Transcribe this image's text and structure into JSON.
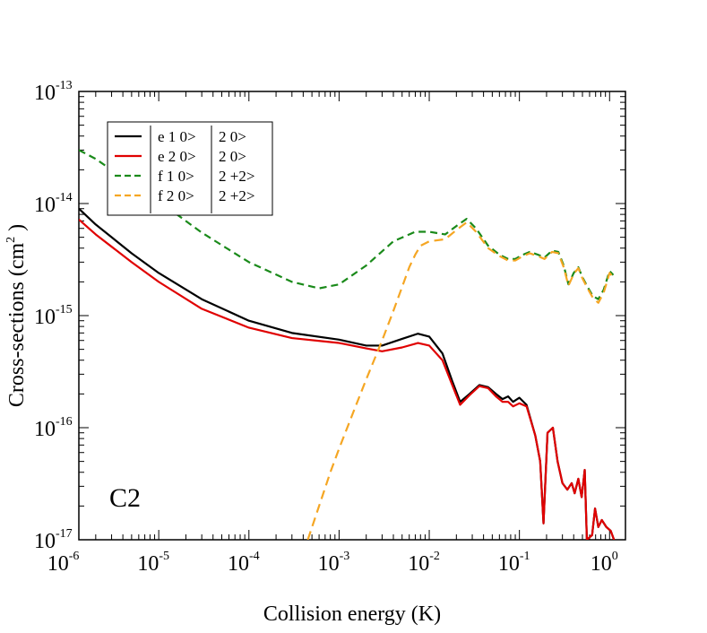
{
  "chart_data": {
    "type": "line",
    "title": "",
    "xlabel": "Collision energy (K)",
    "ylabel_main": "Cross-sections (cm",
    "ylabel_sup": "2",
    "ylabel_end": " )",
    "annotation": "C2",
    "x_scale": "log",
    "y_scale": "log",
    "xlim": [
      1.3e-06,
      1.5
    ],
    "ylim": [
      1e-17,
      1e-13
    ],
    "x_ticks": [
      {
        "value": 1e-06,
        "base": "10",
        "exp": "-6"
      },
      {
        "value": 1e-05,
        "base": "10",
        "exp": "-5"
      },
      {
        "value": 0.0001,
        "base": "10",
        "exp": "-4"
      },
      {
        "value": 0.001,
        "base": "10",
        "exp": "-3"
      },
      {
        "value": 0.01,
        "base": "10",
        "exp": "-2"
      },
      {
        "value": 0.1,
        "base": "10",
        "exp": "-1"
      },
      {
        "value": 1,
        "base": "10",
        "exp": "0"
      }
    ],
    "y_ticks": [
      {
        "value": 1e-17,
        "base": "10",
        "exp": "-17"
      },
      {
        "value": 1e-16,
        "base": "10",
        "exp": "-16"
      },
      {
        "value": 1e-15,
        "base": "10",
        "exp": "-15"
      },
      {
        "value": 1e-14,
        "base": "10",
        "exp": "-14"
      },
      {
        "value": 1e-13,
        "base": "10",
        "exp": "-13"
      }
    ],
    "legend_position": "top-left",
    "series": [
      {
        "name": "e 1  0>| 2  0>",
        "color": "#000000",
        "dash": "solid",
        "points": [
          [
            1.3e-06,
            9e-15
          ],
          [
            2e-06,
            6.5e-15
          ],
          [
            5e-06,
            3.6e-15
          ],
          [
            1e-05,
            2.4e-15
          ],
          [
            3e-05,
            1.4e-15
          ],
          [
            0.0001,
            9e-16
          ],
          [
            0.0003,
            7e-16
          ],
          [
            0.001,
            6.1e-16
          ],
          [
            0.002,
            5.4e-16
          ],
          [
            0.003,
            5.4e-16
          ],
          [
            0.005,
            6.2e-16
          ],
          [
            0.0075,
            6.9e-16
          ],
          [
            0.01,
            6.5e-16
          ],
          [
            0.014,
            4.6e-16
          ],
          [
            0.018,
            2.6e-16
          ],
          [
            0.022,
            1.7e-16
          ],
          [
            0.028,
            2e-16
          ],
          [
            0.036,
            2.4e-16
          ],
          [
            0.045,
            2.3e-16
          ],
          [
            0.055,
            2e-16
          ],
          [
            0.065,
            1.8e-16
          ],
          [
            0.075,
            1.9e-16
          ],
          [
            0.085,
            1.7e-16
          ],
          [
            0.1,
            1.85e-16
          ],
          [
            0.12,
            1.6e-16
          ],
          [
            0.15,
            8.5e-17
          ],
          [
            0.17,
            5e-17
          ],
          [
            0.185,
            1.4e-17
          ],
          [
            0.205,
            9e-17
          ],
          [
            0.235,
            1e-16
          ],
          [
            0.265,
            5e-17
          ],
          [
            0.3,
            3.2e-17
          ],
          [
            0.34,
            2.8e-17
          ],
          [
            0.38,
            3.2e-17
          ],
          [
            0.41,
            2.6e-17
          ],
          [
            0.45,
            3.5e-17
          ],
          [
            0.49,
            2.4e-17
          ],
          [
            0.53,
            4.2e-17
          ],
          [
            0.56,
            1e-17
          ],
          [
            0.64,
            1.1e-17
          ],
          [
            0.69,
            1.9e-17
          ],
          [
            0.75,
            1.3e-17
          ],
          [
            0.82,
            1.5e-17
          ],
          [
            0.92,
            1.3e-17
          ],
          [
            1.03,
            1.2e-17
          ],
          [
            1.12,
            1e-17
          ]
        ]
      },
      {
        "name": "e 2  0>| 2  0>",
        "color": "#e00000",
        "dash": "solid",
        "points": [
          [
            1.3e-06,
            7.2e-15
          ],
          [
            2e-06,
            5.3e-15
          ],
          [
            5e-06,
            3e-15
          ],
          [
            1e-05,
            2e-15
          ],
          [
            3e-05,
            1.15e-15
          ],
          [
            0.0001,
            7.8e-16
          ],
          [
            0.0003,
            6.3e-16
          ],
          [
            0.001,
            5.7e-16
          ],
          [
            0.002,
            5.1e-16
          ],
          [
            0.003,
            4.8e-16
          ],
          [
            0.005,
            5.2e-16
          ],
          [
            0.0075,
            5.7e-16
          ],
          [
            0.01,
            5.4e-16
          ],
          [
            0.014,
            4e-16
          ],
          [
            0.018,
            2.4e-16
          ],
          [
            0.022,
            1.6e-16
          ],
          [
            0.028,
            1.95e-16
          ],
          [
            0.036,
            2.35e-16
          ],
          [
            0.045,
            2.25e-16
          ],
          [
            0.055,
            1.9e-16
          ],
          [
            0.065,
            1.7e-16
          ],
          [
            0.075,
            1.7e-16
          ],
          [
            0.085,
            1.55e-16
          ],
          [
            0.1,
            1.65e-16
          ],
          [
            0.12,
            1.55e-16
          ],
          [
            0.15,
            8.5e-17
          ],
          [
            0.17,
            5e-17
          ],
          [
            0.185,
            1.4e-17
          ],
          [
            0.205,
            9e-17
          ],
          [
            0.235,
            1e-16
          ],
          [
            0.265,
            5e-17
          ],
          [
            0.3,
            3.2e-17
          ],
          [
            0.34,
            2.8e-17
          ],
          [
            0.38,
            3.2e-17
          ],
          [
            0.41,
            2.6e-17
          ],
          [
            0.45,
            3.5e-17
          ],
          [
            0.49,
            2.4e-17
          ],
          [
            0.53,
            4.2e-17
          ],
          [
            0.56,
            1e-17
          ],
          [
            0.64,
            1.1e-17
          ],
          [
            0.69,
            1.9e-17
          ],
          [
            0.75,
            1.3e-17
          ],
          [
            0.82,
            1.5e-17
          ],
          [
            0.92,
            1.3e-17
          ],
          [
            1.03,
            1.2e-17
          ],
          [
            1.12,
            1e-17
          ]
        ]
      },
      {
        "name": "f 1  0>| 2 +2>",
        "color": "#1a8a1a",
        "dash": "8,5",
        "points": [
          [
            1.3e-06,
            3e-14
          ],
          [
            2e-06,
            2.5e-14
          ],
          [
            5e-06,
            1.5e-14
          ],
          [
            1e-05,
            1.05e-14
          ],
          [
            3e-05,
            5.5e-15
          ],
          [
            0.0001,
            3e-15
          ],
          [
            0.0003,
            2e-15
          ],
          [
            0.0006,
            1.75e-15
          ],
          [
            0.001,
            1.9e-15
          ],
          [
            0.002,
            2.8e-15
          ],
          [
            0.004,
            4.6e-15
          ],
          [
            0.007,
            5.6e-15
          ],
          [
            0.01,
            5.6e-15
          ],
          [
            0.015,
            5.3e-15
          ],
          [
            0.02,
            6.3e-15
          ],
          [
            0.026,
            7.3e-15
          ],
          [
            0.033,
            6e-15
          ],
          [
            0.045,
            4.2e-15
          ],
          [
            0.06,
            3.5e-15
          ],
          [
            0.075,
            3.2e-15
          ],
          [
            0.09,
            3.2e-15
          ],
          [
            0.11,
            3.5e-15
          ],
          [
            0.13,
            3.7e-15
          ],
          [
            0.16,
            3.5e-15
          ],
          [
            0.19,
            3.3e-15
          ],
          [
            0.23,
            3.8e-15
          ],
          [
            0.27,
            3.7e-15
          ],
          [
            0.31,
            2.8e-15
          ],
          [
            0.35,
            1.9e-15
          ],
          [
            0.4,
            2.4e-15
          ],
          [
            0.45,
            2.7e-15
          ],
          [
            0.5,
            2.2e-15
          ],
          [
            0.57,
            1.8e-15
          ],
          [
            0.65,
            1.5e-15
          ],
          [
            0.75,
            1.4e-15
          ],
          [
            0.86,
            1.7e-15
          ],
          [
            1,
            2.5e-15
          ],
          [
            1.1,
            2.3e-15
          ]
        ]
      },
      {
        "name": "f 2  0>| 2 +2>",
        "color": "#f5a623",
        "dash": "10,6",
        "points": [
          [
            0.00045,
            1e-17
          ],
          [
            0.0006,
            2e-17
          ],
          [
            0.0008,
            4e-17
          ],
          [
            0.001,
            6.5e-17
          ],
          [
            0.0015,
            1.5e-16
          ],
          [
            0.002,
            2.7e-16
          ],
          [
            0.003,
            6e-16
          ],
          [
            0.004,
            1.1e-15
          ],
          [
            0.005,
            1.8e-15
          ],
          [
            0.006,
            2.7e-15
          ],
          [
            0.007,
            3.5e-15
          ],
          [
            0.008,
            4.2e-15
          ],
          [
            0.01,
            4.6e-15
          ],
          [
            0.015,
            4.8e-15
          ],
          [
            0.02,
            5.8e-15
          ],
          [
            0.026,
            6.8e-15
          ],
          [
            0.033,
            5.6e-15
          ],
          [
            0.045,
            4e-15
          ],
          [
            0.06,
            3.4e-15
          ],
          [
            0.075,
            3.1e-15
          ],
          [
            0.09,
            3.1e-15
          ],
          [
            0.11,
            3.4e-15
          ],
          [
            0.13,
            3.6e-15
          ],
          [
            0.16,
            3.4e-15
          ],
          [
            0.19,
            3.2e-15
          ],
          [
            0.23,
            3.7e-15
          ],
          [
            0.27,
            3.6e-15
          ],
          [
            0.31,
            2.7e-15
          ],
          [
            0.35,
            1.85e-15
          ],
          [
            0.4,
            2.35e-15
          ],
          [
            0.45,
            2.65e-15
          ],
          [
            0.5,
            2.15e-15
          ],
          [
            0.57,
            1.75e-15
          ],
          [
            0.65,
            1.45e-15
          ],
          [
            0.75,
            1.3e-15
          ],
          [
            0.86,
            1.6e-15
          ],
          [
            1,
            2.4e-15
          ],
          [
            1.1,
            2.2e-15
          ]
        ]
      }
    ]
  }
}
